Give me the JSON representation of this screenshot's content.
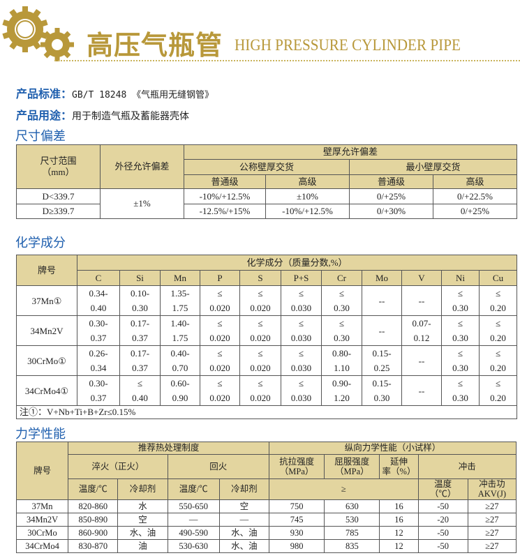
{
  "header": {
    "title_cn": "高压气瓶管",
    "title_en": "HIGH PRESSURE CYLINDER PIPE",
    "brand_color": "#b8983a",
    "icon": "gears-icon"
  },
  "info": {
    "standard_label": "产品标准：",
    "standard_value": "GB/T 18248 《气瓶用无缝钢管》",
    "usage_label": "产品用途：",
    "usage_value": "用于制造气瓶及蓄能器壳体"
  },
  "colors": {
    "heading_blue": "#1f5fae",
    "table_header": "#e3d59f"
  },
  "dimension": {
    "heading": "尺寸偏差",
    "headers": {
      "size_range": "尺寸范围\n（mm）",
      "od_tolerance": "外径允许偏差",
      "wall_tolerance": "壁厚允许偏差",
      "nominal": "公称壁厚交货",
      "minimum": "最小壁厚交货",
      "normal1": "普通级",
      "high1": "高级",
      "normal2": "普通级",
      "high2": "高级"
    },
    "od_value": "±1%",
    "rows": [
      {
        "range": "D<339.7",
        "values": [
          "-10%/+12.5%",
          "±10%",
          "0/+25%",
          "0/+22.5%"
        ]
      },
      {
        "range": "D≥339.7",
        "values": [
          "-12.5%/+15%",
          "-10%/+12.5%",
          "0/+30%",
          "0/+25%"
        ]
      }
    ]
  },
  "chemical": {
    "heading": "化学成分",
    "grade_header": "牌号",
    "group_header": "化学成分（质量分数,%）",
    "elements": [
      "C",
      "Si",
      "Mn",
      "P",
      "S",
      "P+S",
      "Cr",
      "Mo",
      "V",
      "Ni",
      "Cu"
    ],
    "rows": [
      {
        "grade": "37Mn①",
        "values": [
          "0.34-\n0.40",
          "0.10-\n0.30",
          "1.35-\n1.75",
          "≤\n0.020",
          "≤\n0.020",
          "≤\n0.030",
          "≤\n0.30",
          "--",
          "--",
          "≤\n0.30",
          "≤\n0.20"
        ]
      },
      {
        "grade": "34Mn2V",
        "values": [
          "0.30-\n0.37",
          "0.17-\n0.37",
          "1.40-\n1.75",
          "≤\n0.020",
          "≤\n0.020",
          "≤\n0.030",
          "≤\n0.30",
          "--",
          "0.07-\n0.12",
          "≤\n0.30",
          "≤\n0.20"
        ]
      },
      {
        "grade": "30CrMo①",
        "values": [
          "0.26-\n0.34",
          "0.17-\n0.37",
          "0.40-\n0.70",
          "≤\n0.020",
          "≤\n0.020",
          "≤\n0.030",
          "0.80-\n1.10",
          "0.15-\n0.25",
          "--",
          "≤\n0.30",
          "≤\n0.20"
        ]
      },
      {
        "grade": "34CrMo4①",
        "values": [
          "0.30-\n0.37",
          "≤\n0.40",
          "0.60-\n0.90",
          "≤\n0.020",
          "≤\n0.020",
          "≤\n0.030",
          "0.90-\n1.20",
          "0.15-\n0.30",
          "--",
          "≤\n0.30",
          "≤\n0.20"
        ]
      }
    ],
    "note": "注①：V+Nb+Ti+B+Zr≤0.15%"
  },
  "mechanical": {
    "heading": "力学性能",
    "headers": {
      "grade": "牌号",
      "heat_treatment": "推荐热处理制度",
      "longitudinal": "纵向力学性能（小试样）",
      "quench": "淬火（正火）",
      "temper": "回火",
      "tensile": "抗拉强度\n（MPa）",
      "yield": "屈服强度\n（MPa）",
      "elongation": "延伸\n率（%）",
      "impact": "冲击",
      "q_temp": "温度/℃",
      "q_coolant": "冷却剂",
      "t_temp": "温度/℃",
      "t_coolant": "冷却剂",
      "min": "≥",
      "i_temp": "温度\n（℃）",
      "i_energy": "冲击功\nAKV(J)"
    },
    "rows": [
      [
        "37Mn",
        "820-860",
        "水",
        "550-650",
        "空",
        "750",
        "630",
        "16",
        "-50",
        "≥27"
      ],
      [
        "34Mn2V",
        "850-890",
        "空",
        "—",
        "—",
        "745",
        "530",
        "16",
        "-20",
        "≥27"
      ],
      [
        "30CrMo",
        "860-900",
        "水、油",
        "490-590",
        "水、油",
        "930",
        "785",
        "12",
        "-50",
        "≥27"
      ],
      [
        "34CrMo4",
        "830-870",
        "油",
        "530-630",
        "水、油",
        "980",
        "835",
        "12",
        "-50",
        "≥27"
      ]
    ]
  }
}
